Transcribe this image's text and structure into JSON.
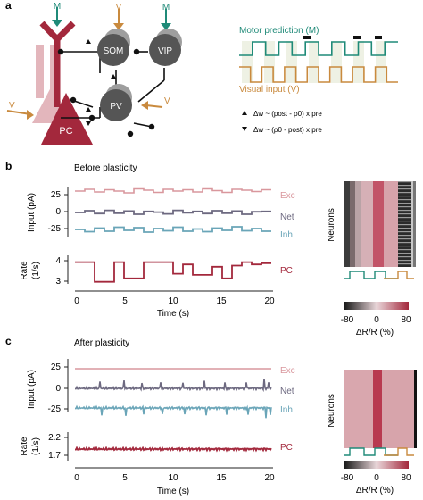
{
  "panels": {
    "a": {
      "label": "a",
      "neurons": {
        "som": "SOM",
        "vip": "VIP",
        "pv": "PV",
        "pc": "PC"
      },
      "inputs": {
        "m_left": "M",
        "v_mid": "V",
        "m_right": "M",
        "v_left": "V",
        "v_right": "V"
      },
      "legend": {
        "motor": "Motor prediction (M)",
        "visual": "Visual input (V)"
      },
      "rules": {
        "up": "Δw ~ (post - ρ0) x pre",
        "down": "Δw ~ (ρ0 - post) x pre"
      }
    },
    "b": {
      "label": "b",
      "title": "Before plasticity",
      "input_ylabel": "Input (pA)",
      "rate_ylabel_1": "Rate",
      "rate_ylabel_2": "(1/s)",
      "input_ticks": [
        "25",
        "0",
        "-25"
      ],
      "rate_ticks": [
        "4",
        "3"
      ],
      "xticks": [
        "0",
        "5",
        "10",
        "15",
        "20"
      ],
      "xlabel": "Time (s)",
      "series": {
        "exc": "Exc",
        "net": "Net",
        "inh": "Inh",
        "pc": "PC"
      },
      "heatmap_ylabel": "Neurons",
      "cbar_ticks": [
        "-80",
        "0",
        "80"
      ],
      "cbar_label": "ΔR/R (%)"
    },
    "c": {
      "label": "c",
      "title": "After plasticity",
      "input_ylabel": "Input (pA)",
      "rate_ylabel_1": "Rate",
      "rate_ylabel_2": "(1/s)",
      "input_ticks": [
        "25",
        "0",
        "-25"
      ],
      "rate_ticks": [
        "2.2",
        "1.7"
      ],
      "xticks": [
        "0",
        "5",
        "10",
        "15",
        "20"
      ],
      "xlabel": "Time (s)",
      "series": {
        "exc": "Exc",
        "net": "Net",
        "inh": "Inh",
        "pc": "PC"
      },
      "heatmap_ylabel": "Neurons",
      "cbar_ticks": [
        "-80",
        "0",
        "80"
      ],
      "cbar_label": "ΔR/R (%)"
    }
  },
  "colors": {
    "teal": "#1f8a78",
    "orange": "#c98a3e",
    "pc": "#a3283c",
    "pc_light": "#d98e99",
    "exc": "#d9979d",
    "net": "#6d6980",
    "inh": "#6aa5b8",
    "gray_cell": "#555555"
  }
}
